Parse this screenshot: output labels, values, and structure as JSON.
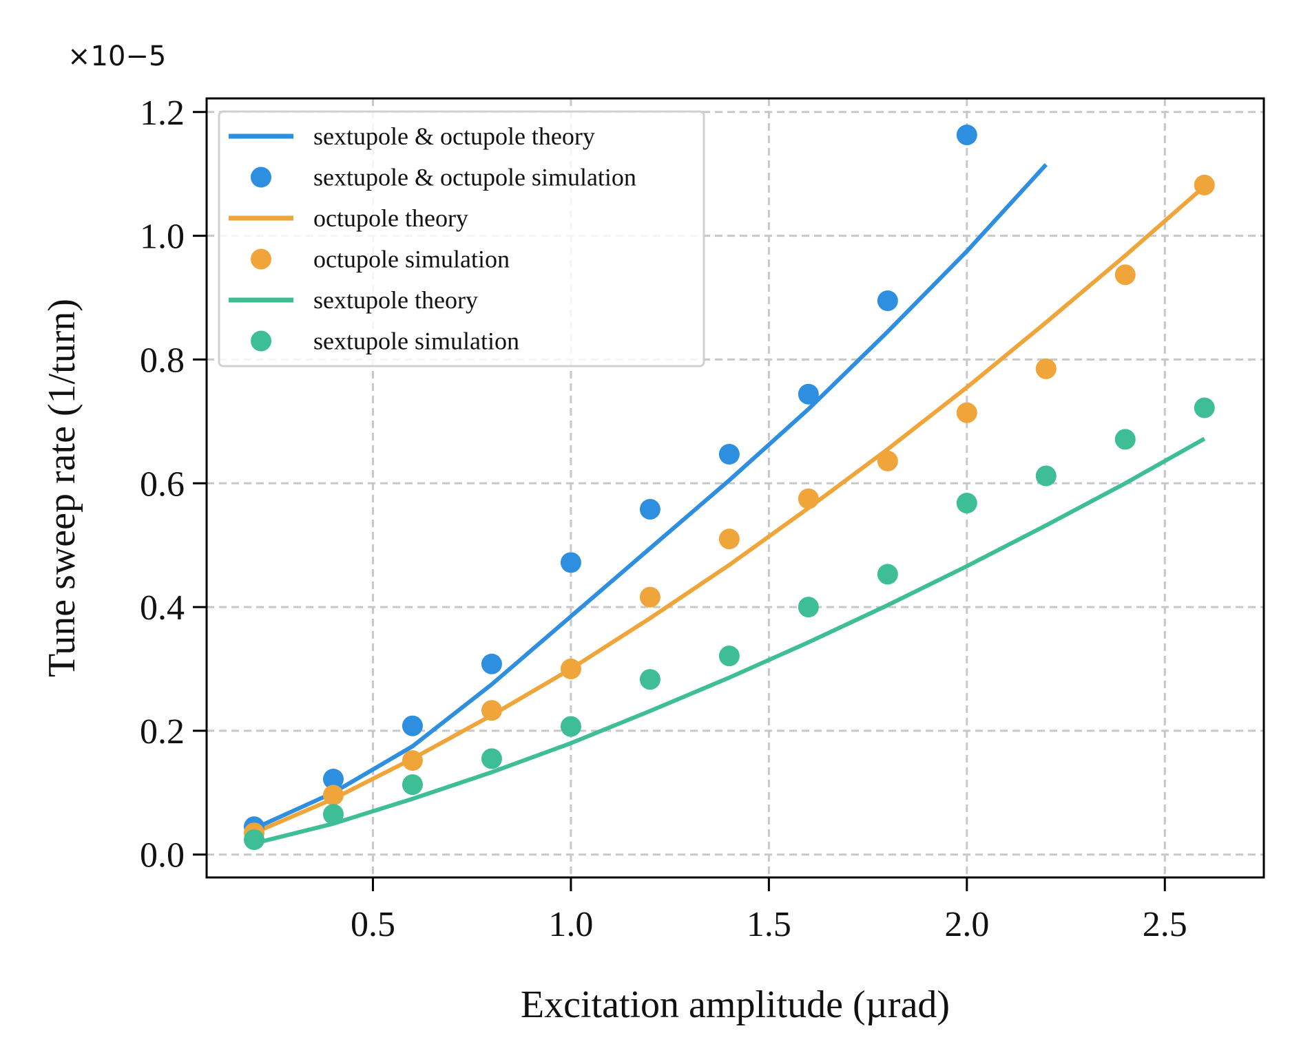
{
  "chart_data": {
    "type": "line",
    "xlabel": "Excitation amplitude (µrad)",
    "ylabel": "Tune sweep rate (1/turn)",
    "y_offset_label": "×10−5",
    "xlim": [
      0.08,
      2.75
    ],
    "ylim": [
      -0.037,
      1.222
    ],
    "x_ticks": [
      0.5,
      1.0,
      1.5,
      2.0,
      2.5
    ],
    "x_tick_labels": [
      "0.5",
      "1.0",
      "1.5",
      "2.0",
      "2.5"
    ],
    "y_ticks": [
      0.0,
      0.2,
      0.4,
      0.6,
      0.8,
      1.0,
      1.2
    ],
    "y_tick_labels": [
      "0.0",
      "0.2",
      "0.4",
      "0.6",
      "0.8",
      "1.0",
      "1.2"
    ],
    "grid": true,
    "legend_position": "top-left",
    "series": [
      {
        "name": "sextupole & octupole theory",
        "kind": "line",
        "color": "#2E8FE0",
        "x": [
          0.2,
          0.4,
          0.6,
          0.8,
          1.0,
          1.2,
          1.4,
          1.6,
          1.8,
          2.0,
          2.2
        ],
        "y": [
          0.042,
          0.1,
          0.175,
          0.275,
          0.385,
          0.495,
          0.605,
          0.72,
          0.845,
          0.975,
          1.115
        ]
      },
      {
        "name": "sextupole & octupole simulation",
        "kind": "scatter",
        "color": "#2E8FE0",
        "x": [
          0.2,
          0.4,
          0.6,
          0.8,
          1.0,
          1.2,
          1.4,
          1.6,
          1.8,
          2.0
        ],
        "y": [
          0.045,
          0.122,
          0.208,
          0.308,
          0.472,
          0.558,
          0.647,
          0.744,
          0.895,
          1.163
        ]
      },
      {
        "name": "octupole theory",
        "kind": "line",
        "color": "#F0A53A",
        "x": [
          0.2,
          0.4,
          0.6,
          0.8,
          1.0,
          1.2,
          1.4,
          1.6,
          1.8,
          2.0,
          2.2,
          2.4,
          2.6
        ],
        "y": [
          0.035,
          0.09,
          0.155,
          0.225,
          0.3,
          0.382,
          0.468,
          0.56,
          0.655,
          0.755,
          0.86,
          0.968,
          1.08
        ]
      },
      {
        "name": "octupole simulation",
        "kind": "scatter",
        "color": "#F0A53A",
        "x": [
          0.2,
          0.4,
          0.6,
          0.8,
          1.0,
          1.2,
          1.4,
          1.6,
          1.8,
          2.0,
          2.2,
          2.4,
          2.6
        ],
        "y": [
          0.035,
          0.096,
          0.152,
          0.233,
          0.3,
          0.416,
          0.51,
          0.575,
          0.636,
          0.714,
          0.785,
          0.937,
          1.082
        ]
      },
      {
        "name": "sextupole theory",
        "kind": "line",
        "color": "#3DBE95",
        "x": [
          0.2,
          0.4,
          0.6,
          0.8,
          1.0,
          1.2,
          1.4,
          1.6,
          1.8,
          2.0,
          2.2,
          2.4,
          2.6
        ],
        "y": [
          0.018,
          0.05,
          0.09,
          0.133,
          0.18,
          0.232,
          0.286,
          0.343,
          0.403,
          0.466,
          0.532,
          0.6,
          0.672
        ]
      },
      {
        "name": "sextupole simulation",
        "kind": "scatter",
        "color": "#3DBE95",
        "x": [
          0.2,
          0.4,
          0.6,
          0.8,
          1.0,
          1.2,
          1.4,
          1.6,
          1.8,
          2.0,
          2.2,
          2.4,
          2.6
        ],
        "y": [
          0.024,
          0.065,
          0.113,
          0.155,
          0.207,
          0.283,
          0.321,
          0.4,
          0.453,
          0.568,
          0.612,
          0.671,
          0.722
        ]
      }
    ]
  }
}
